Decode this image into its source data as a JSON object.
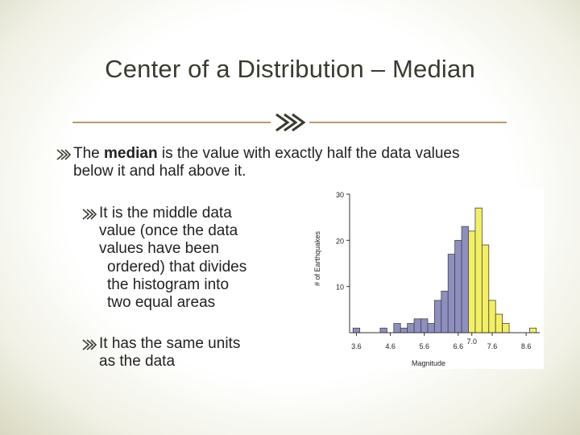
{
  "slide": {
    "title": "Center of a Distribution – Median",
    "divider_icon": "double-chevron-right-icon",
    "bullet_icon": "double-chevron-right-icon",
    "bullet_main": {
      "pre": "The ",
      "bold": "median",
      "post_line1": " is the value with exactly half the data values",
      "line2": "below it and half above it."
    },
    "sub_bullet_1": {
      "lines": [
        "It is the middle data",
        "value (once the data",
        "values have been",
        "ordered) that divides",
        "the histogram into",
        "two equal areas"
      ]
    },
    "sub_bullet_2": {
      "lines": [
        "It has the same units",
        "as the data"
      ]
    }
  },
  "chart_data": {
    "type": "bar",
    "xlabel": "Magnitude",
    "ylabel": "# of Earthquakes",
    "ylim": [
      0,
      30
    ],
    "yticks": [
      "10",
      "20",
      "30"
    ],
    "xticks": [
      "3.6",
      "4.6",
      "5.6",
      "6.6",
      "7.0",
      "7.6",
      "8.6"
    ],
    "grid": false,
    "colors": {
      "below_median": "#8d8fc0",
      "above_median": "#f3ef62",
      "outline": "#444444"
    },
    "bins": [
      {
        "x": 3.6,
        "value": 1,
        "half": "below"
      },
      {
        "x": 4.4,
        "value": 1,
        "half": "below"
      },
      {
        "x": 4.8,
        "value": 2,
        "half": "below"
      },
      {
        "x": 5.0,
        "value": 1,
        "half": "below"
      },
      {
        "x": 5.2,
        "value": 2,
        "half": "below"
      },
      {
        "x": 5.4,
        "value": 3,
        "half": "below"
      },
      {
        "x": 5.6,
        "value": 3,
        "half": "below"
      },
      {
        "x": 5.8,
        "value": 2,
        "half": "below"
      },
      {
        "x": 6.0,
        "value": 7,
        "half": "below"
      },
      {
        "x": 6.2,
        "value": 9,
        "half": "below"
      },
      {
        "x": 6.4,
        "value": 17,
        "half": "below"
      },
      {
        "x": 6.6,
        "value": 20,
        "half": "below"
      },
      {
        "x": 6.8,
        "value": 23,
        "half": "below"
      },
      {
        "x": 7.0,
        "value": 22,
        "half": "above"
      },
      {
        "x": 7.2,
        "value": 27,
        "half": "above"
      },
      {
        "x": 7.4,
        "value": 19,
        "half": "above"
      },
      {
        "x": 7.6,
        "value": 7,
        "half": "above"
      },
      {
        "x": 7.8,
        "value": 4,
        "half": "above"
      },
      {
        "x": 8.0,
        "value": 2,
        "half": "above"
      },
      {
        "x": 8.8,
        "value": 1,
        "half": "above"
      }
    ]
  }
}
